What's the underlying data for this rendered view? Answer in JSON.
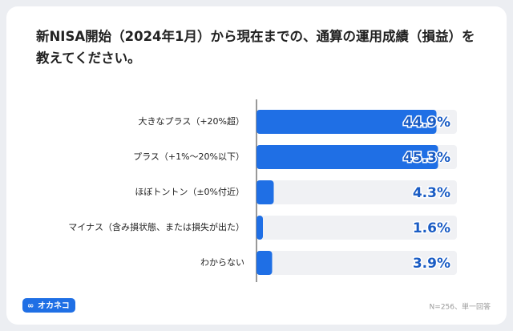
{
  "chart_data": {
    "type": "bar",
    "orientation": "horizontal",
    "title": "新NISA開始（2024年1月）から現在までの、通算の運用成績（損益）を教えてください。",
    "categories": [
      "大きなプラス（+20%超）",
      "プラス（+1%～20%以下）",
      "ほぼトントン（±0%付近）",
      "マイナス（含み損状態、または損失が出た）",
      "わからない"
    ],
    "values": [
      44.9,
      45.3,
      4.3,
      1.6,
      3.9
    ],
    "value_labels": [
      "44.9%",
      "45.3%",
      "4.3%",
      "1.6%",
      "3.9%"
    ],
    "color": "#1f6fe5",
    "xlim": [
      0,
      50
    ],
    "note": "N=256、単一回答",
    "logo": "オカネコ"
  }
}
